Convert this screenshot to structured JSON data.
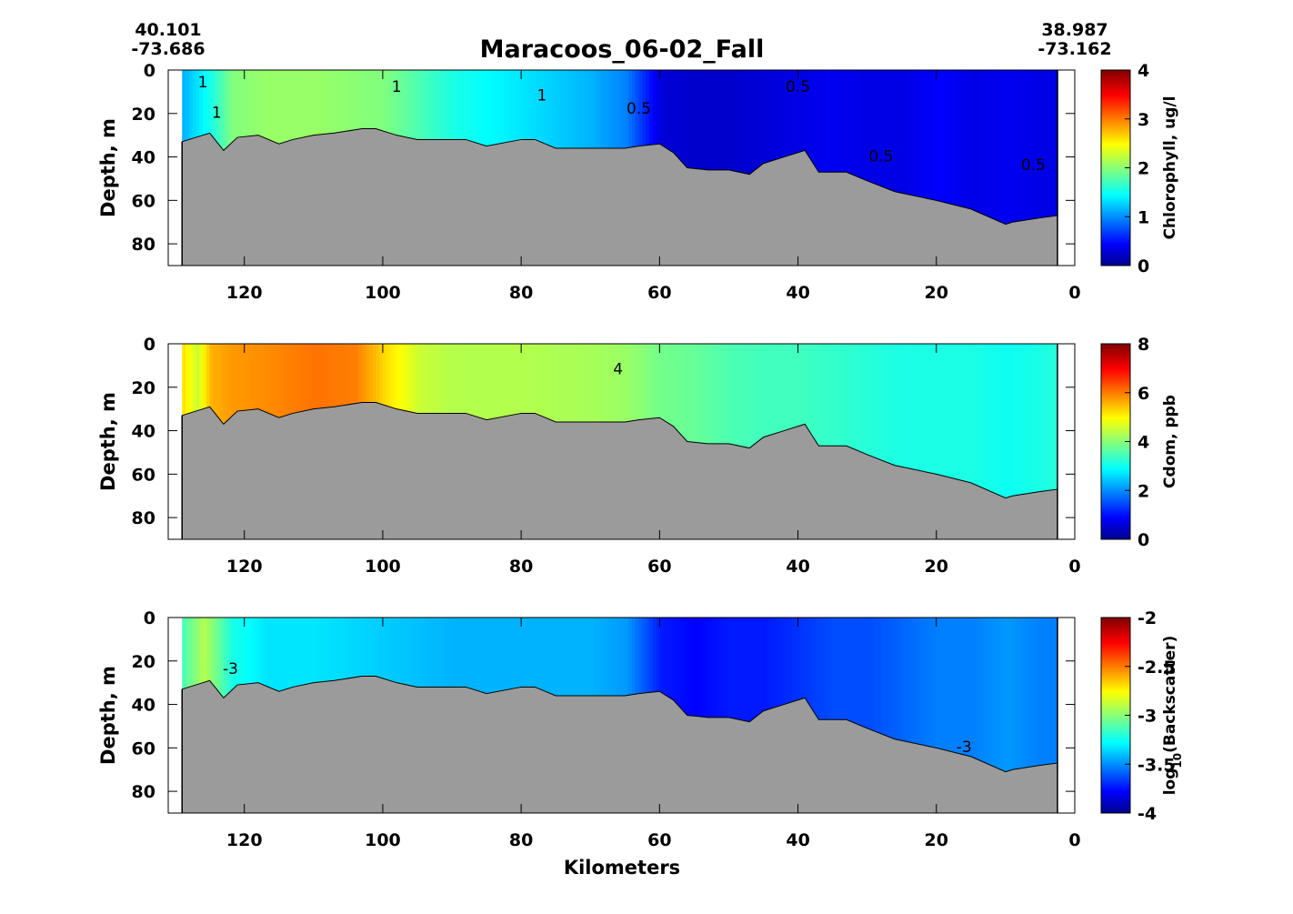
{
  "figure": {
    "title": "Maracoos_06-02_Fall",
    "start_lat": "40.101",
    "start_lon": "-73.686",
    "end_lat": "38.987",
    "end_lon": "-73.162",
    "xlabel": "Kilometers"
  },
  "colors": {
    "bathymetry": "#9b9b9b",
    "colormap": "jet"
  },
  "chart_data": [
    {
      "type": "heatmap",
      "panel": "chlorophyll",
      "title": "",
      "xlabel": "",
      "ylabel": "Depth, m",
      "colorbar_label": "Chlorophyll, ug/l",
      "x_reversed": true,
      "y_reversed": true,
      "xlim": [
        131,
        0
      ],
      "ylim": [
        0,
        90
      ],
      "xticks": [
        120,
        100,
        80,
        60,
        40,
        20,
        0
      ],
      "yticks": [
        0,
        20,
        40,
        60,
        80
      ],
      "clim": [
        0,
        4
      ],
      "cticks": [
        "0",
        "1",
        "2",
        "3",
        "4"
      ],
      "contour_labels": [
        "1",
        "1",
        "1",
        "1",
        "0.5",
        "0.5",
        "0.5",
        "0.5"
      ],
      "surface_profile": {
        "x": [
          129,
          125,
          122,
          117,
          110,
          100,
          90,
          80,
          70,
          65,
          60,
          55,
          50,
          45,
          40,
          36,
          30,
          25,
          20,
          15,
          10,
          5,
          2.5
        ],
        "values": [
          1.2,
          1.6,
          2.0,
          2.1,
          2.1,
          2.0,
          1.6,
          1.4,
          1.2,
          1.0,
          0.35,
          0.3,
          0.3,
          0.35,
          0.4,
          0.45,
          0.4,
          0.4,
          0.5,
          0.4,
          0.45,
          0.4,
          0.4
        ]
      }
    },
    {
      "type": "heatmap",
      "panel": "cdom",
      "title": "",
      "xlabel": "",
      "ylabel": "Depth, m",
      "colorbar_label": "Cdom, ppb",
      "x_reversed": true,
      "y_reversed": true,
      "xlim": [
        131,
        0
      ],
      "ylim": [
        0,
        90
      ],
      "xticks": [
        120,
        100,
        80,
        60,
        40,
        20,
        0
      ],
      "yticks": [
        0,
        20,
        40,
        60,
        80
      ],
      "clim": [
        0,
        8
      ],
      "cticks": [
        "0",
        "2",
        "4",
        "6",
        "8"
      ],
      "contour_labels": [
        "4"
      ],
      "surface_profile": {
        "x": [
          129,
          127,
          125,
          122,
          117,
          110,
          104,
          100,
          95,
          90,
          80,
          70,
          65,
          60,
          55,
          50,
          45,
          40,
          35,
          30,
          25,
          20,
          15,
          10,
          5,
          2.5
        ],
        "values": [
          5.2,
          4.6,
          5.6,
          5.8,
          5.9,
          6.1,
          6.0,
          5.3,
          4.6,
          4.4,
          4.4,
          4.3,
          4.2,
          3.9,
          3.8,
          3.6,
          3.5,
          3.5,
          3.4,
          3.3,
          3.2,
          3.2,
          3.2,
          3.1,
          3.2,
          3.3
        ]
      }
    },
    {
      "type": "heatmap",
      "panel": "backscatter",
      "title": "",
      "xlabel": "Kilometers",
      "ylabel": "Depth, m",
      "colorbar_label": "log10(Backscatter)",
      "x_reversed": true,
      "y_reversed": true,
      "xlim": [
        131,
        0
      ],
      "ylim": [
        0,
        90
      ],
      "xticks": [
        120,
        100,
        80,
        60,
        40,
        20,
        0
      ],
      "yticks": [
        0,
        20,
        40,
        60,
        80
      ],
      "clim": [
        -4,
        -2
      ],
      "cticks": [
        "-4",
        "-3.5",
        "-3",
        "-2.5",
        "-2"
      ],
      "contour_labels": [
        "-3",
        "-3"
      ],
      "surface_profile": {
        "x": [
          129,
          126,
          122,
          117,
          110,
          100,
          90,
          80,
          70,
          65,
          60,
          55,
          50,
          45,
          40,
          35,
          30,
          25,
          20,
          15,
          10,
          5,
          2.5
        ],
        "values": [
          -3.1,
          -2.9,
          -3.2,
          -3.3,
          -3.3,
          -3.35,
          -3.4,
          -3.4,
          -3.4,
          -3.45,
          -3.7,
          -3.75,
          -3.7,
          -3.7,
          -3.65,
          -3.6,
          -3.6,
          -3.55,
          -3.5,
          -3.5,
          -3.45,
          -3.5,
          -3.5
        ]
      }
    }
  ],
  "bathymetry": {
    "x": [
      129,
      127,
      125,
      124,
      123,
      122,
      121,
      118,
      115,
      113,
      110,
      107,
      103,
      101,
      98,
      95,
      92,
      88,
      85,
      80,
      78,
      75,
      70,
      65,
      63,
      60,
      58,
      56,
      53,
      50,
      47,
      45,
      42,
      40,
      39,
      37,
      33,
      30,
      26,
      20,
      15,
      10,
      9,
      7,
      5,
      2.5
    ],
    "depth": [
      33,
      31,
      29,
      33,
      37,
      34,
      31,
      30,
      34,
      32,
      30,
      29,
      27,
      27,
      30,
      32,
      32,
      32,
      35,
      32,
      32,
      36,
      36,
      36,
      35,
      34,
      38,
      45,
      46,
      46,
      48,
      43,
      40,
      38,
      37,
      47,
      47,
      51,
      56,
      60,
      64,
      71,
      70,
      69,
      68,
      67
    ]
  }
}
